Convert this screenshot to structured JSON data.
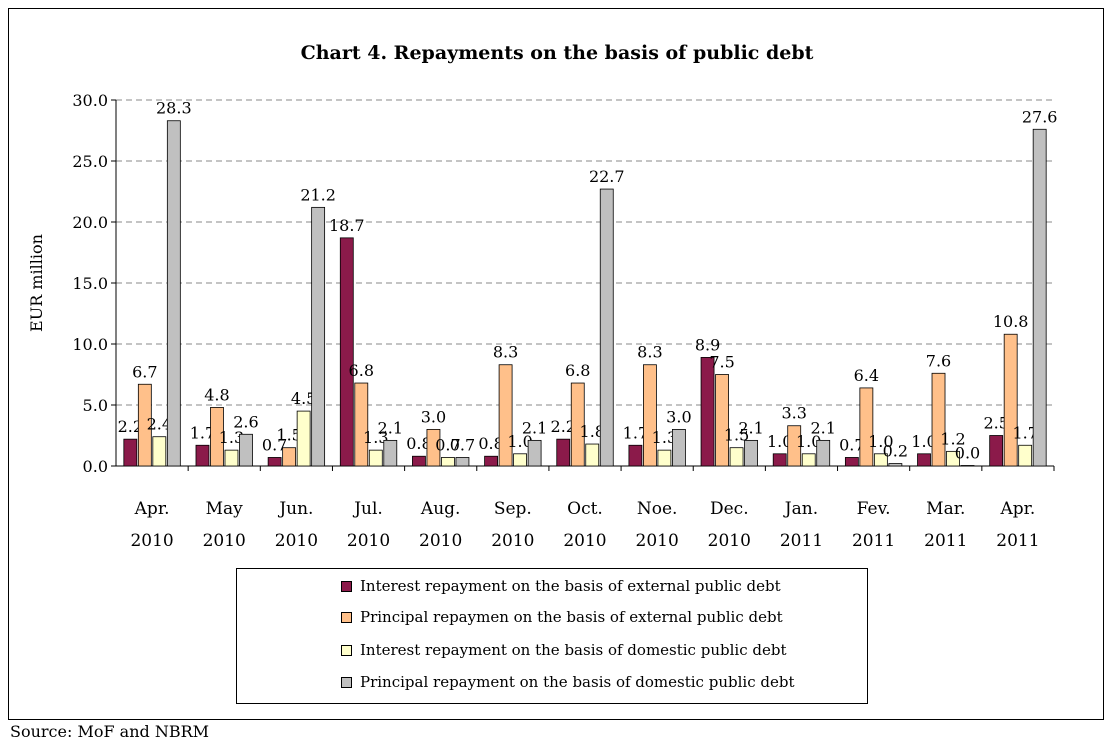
{
  "chart_data": {
    "type": "bar",
    "title": "Chart 4. Repayments on the basis of public debt",
    "ylabel": "EUR million",
    "xlabel": "",
    "ylim": [
      0,
      30
    ],
    "yticks": [
      "0.0",
      "5.0",
      "10.0",
      "15.0",
      "20.0",
      "25.0",
      "30.0"
    ],
    "grid": true,
    "legend_position": "bottom",
    "categories": [
      [
        "Apr.",
        "2010"
      ],
      [
        "May",
        "2010"
      ],
      [
        "Jun.",
        "2010"
      ],
      [
        "Jul.",
        "2010"
      ],
      [
        "Aug.",
        "2010"
      ],
      [
        "Sep.",
        "2010"
      ],
      [
        "Oct.",
        "2010"
      ],
      [
        "Noe.",
        "2010"
      ],
      [
        "Dec.",
        "2010"
      ],
      [
        "Jan.",
        "2011"
      ],
      [
        "Fev.",
        "2011"
      ],
      [
        "Mar.",
        "2011"
      ],
      [
        "Apr.",
        "2011"
      ]
    ],
    "series": [
      {
        "name": "Interest repayment on the basis of external public debt",
        "color": "#8B1A4A",
        "values": [
          2.2,
          1.7,
          0.7,
          18.7,
          0.8,
          0.8,
          2.2,
          1.7,
          8.9,
          1.0,
          0.7,
          1.0,
          2.5
        ]
      },
      {
        "name": "Principal repaymen on the basis of external public debt",
        "color": "#FFC08A",
        "values": [
          6.7,
          4.8,
          1.5,
          6.8,
          3.0,
          8.3,
          6.8,
          8.3,
          7.5,
          3.3,
          6.4,
          7.6,
          10.8
        ]
      },
      {
        "name": "Interest repayment on the basis of domestic public debt",
        "color": "#FFFFCC",
        "values": [
          2.4,
          1.3,
          4.5,
          1.3,
          0.7,
          1.0,
          1.8,
          1.3,
          1.5,
          1.0,
          1.0,
          1.2,
          1.7
        ]
      },
      {
        "name": "Principal repayment on the basis of domestic public debt",
        "color": "#C0C0C0",
        "values": [
          28.3,
          2.6,
          21.2,
          2.1,
          0.7,
          2.1,
          22.7,
          3.0,
          2.1,
          2.1,
          0.2,
          0.0,
          27.6
        ]
      }
    ]
  },
  "source": "Source: MoF and NBRM"
}
